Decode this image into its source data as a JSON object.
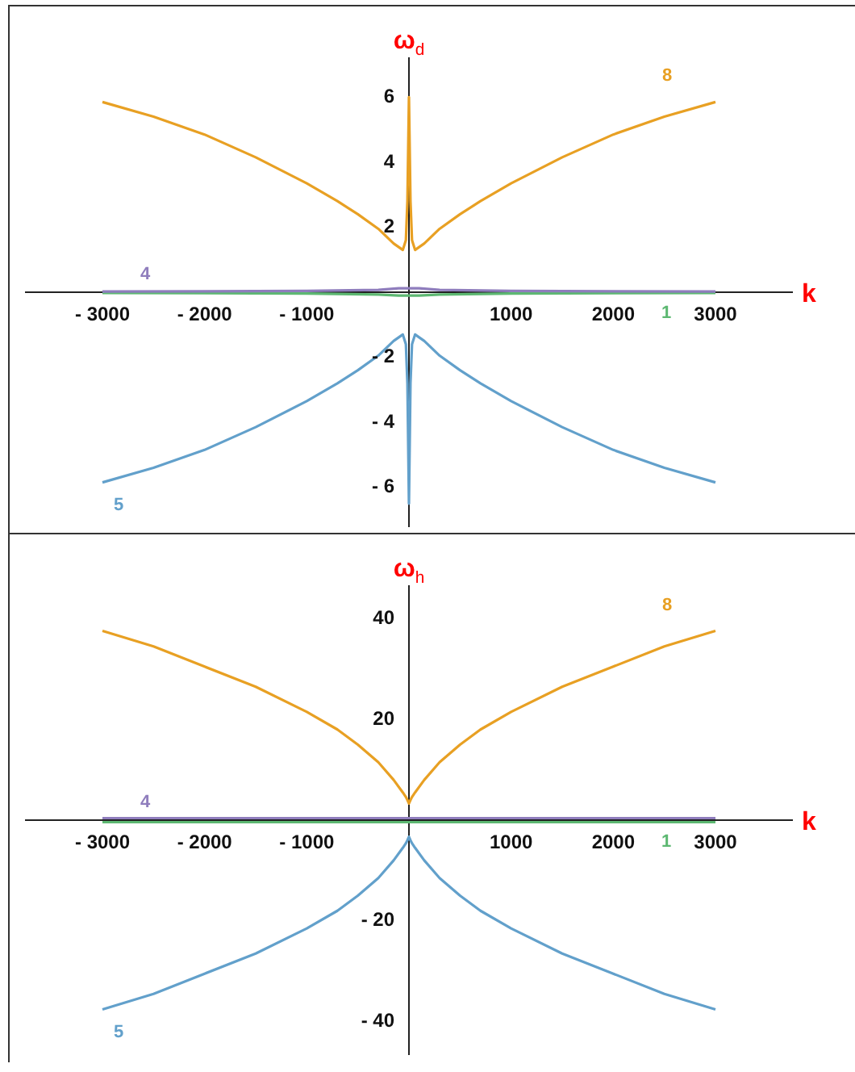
{
  "chart_data": [
    {
      "type": "line",
      "xlabel": "k",
      "ylabel": "ω$_{d}$",
      "xlim": [
        -3750,
        3750
      ],
      "ylim": [
        -7.2,
        7.2
      ],
      "xticks": [
        {
          "value": -3000,
          "label": "- 3000"
        },
        {
          "value": -2000,
          "label": "- 2000"
        },
        {
          "value": -1000,
          "label": "- 1000"
        },
        1000,
        2000,
        3000
      ],
      "yticks": [
        {
          "value": -6,
          "label": "- 6"
        },
        {
          "value": -4,
          "label": "- 4"
        },
        {
          "value": -2,
          "label": "- 2"
        },
        2,
        4,
        6
      ],
      "grid": false,
      "legend": false,
      "marker": "none",
      "line_style": "solid",
      "series": [
        {
          "name": "8",
          "color": "#e8a023",
          "x": [
            -3000,
            -2500,
            -2000,
            -1500,
            -1000,
            -700,
            -500,
            -300,
            -150,
            -60,
            -30,
            -15,
            0,
            15,
            30,
            60,
            150,
            300,
            500,
            700,
            1000,
            1500,
            2000,
            2500,
            3000
          ],
          "values": [
            5.85,
            5.4,
            4.85,
            4.15,
            3.35,
            2.8,
            2.4,
            1.95,
            1.5,
            1.3,
            1.6,
            2.8,
            6,
            2.8,
            1.6,
            1.3,
            1.5,
            1.95,
            2.4,
            2.8,
            3.35,
            4.15,
            4.85,
            5.4,
            5.85
          ]
        },
        {
          "name": "5",
          "color": "#62a0cb",
          "x": [
            -3000,
            -2500,
            -2000,
            -1500,
            -1000,
            -700,
            -500,
            -300,
            -150,
            -60,
            -30,
            -15,
            0,
            15,
            30,
            60,
            150,
            300,
            500,
            700,
            1000,
            1500,
            2000,
            2500,
            3000
          ],
          "values": [
            -5.85,
            -5.4,
            -4.85,
            -4.15,
            -3.35,
            -2.8,
            -2.4,
            -1.95,
            -1.5,
            -1.3,
            -1.6,
            -2.8,
            -6.5,
            -2.8,
            -1.6,
            -1.3,
            -1.5,
            -1.95,
            -2.4,
            -2.8,
            -3.35,
            -4.15,
            -4.85,
            -5.4,
            -5.85
          ]
        },
        {
          "name": "4",
          "color": "#8f7dbd",
          "x": [
            -3000,
            -1000,
            -300,
            -100,
            0,
            100,
            300,
            1000,
            3000
          ],
          "values": [
            0.02,
            0.04,
            0.07,
            0.12,
            0.12,
            0.12,
            0.07,
            0.04,
            0.02
          ]
        },
        {
          "name": "1",
          "color": "#5db872",
          "x": [
            -3000,
            -1000,
            -300,
            -100,
            0,
            100,
            300,
            1000,
            3000
          ],
          "values": [
            -0.02,
            -0.04,
            -0.07,
            -0.1,
            -0.1,
            -0.1,
            -0.07,
            -0.04,
            -0.02
          ]
        }
      ]
    },
    {
      "type": "line",
      "xlabel": "k",
      "ylabel": "ω$_{h}$",
      "xlim": [
        -3750,
        3750
      ],
      "ylim": [
        -46.5,
        46.5
      ],
      "xticks": [
        {
          "value": -3000,
          "label": "- 3000"
        },
        {
          "value": -2000,
          "label": "- 2000"
        },
        {
          "value": -1000,
          "label": "- 1000"
        },
        1000,
        2000,
        3000
      ],
      "yticks": [
        {
          "value": -40,
          "label": "- 40"
        },
        {
          "value": -20,
          "label": "- 20"
        },
        20,
        40
      ],
      "grid": false,
      "legend": false,
      "marker": "none",
      "line_style": "solid",
      "series": [
        {
          "name": "8",
          "color": "#e8a023",
          "x": [
            -3000,
            -2500,
            -2000,
            -1500,
            -1000,
            -700,
            -500,
            -300,
            -150,
            -60,
            -30,
            -15,
            0,
            15,
            30,
            60,
            150,
            300,
            500,
            700,
            1000,
            1500,
            2000,
            2500,
            3000
          ],
          "values": [
            37.6,
            34.5,
            30.5,
            26.5,
            21.5,
            18,
            15,
            11.5,
            8,
            5.5,
            4.6,
            4,
            3.3,
            4,
            4.6,
            5.5,
            8,
            11.5,
            15,
            18,
            21.5,
            26.5,
            30.5,
            34.5,
            37.6
          ]
        },
        {
          "name": "5",
          "color": "#62a0cb",
          "x": [
            -3000,
            -2500,
            -2000,
            -1500,
            -1000,
            -700,
            -500,
            -300,
            -150,
            -60,
            -30,
            -15,
            0,
            15,
            30,
            60,
            150,
            300,
            500,
            700,
            1000,
            1500,
            2000,
            2500,
            3000
          ],
          "values": [
            -37.6,
            -34.5,
            -30.5,
            -26.5,
            -21.5,
            -18,
            -15,
            -11.5,
            -8,
            -5.5,
            -4.6,
            -4,
            -3.3,
            -4,
            -4.6,
            -5.5,
            -8,
            -11.5,
            -15,
            -18,
            -21.5,
            -26.5,
            -30.5,
            -34.5,
            -37.6
          ]
        },
        {
          "name": "4",
          "color": "#8f7dbd",
          "x": [
            -3000,
            3000
          ],
          "values": [
            0.4,
            0.4
          ]
        },
        {
          "name": "1",
          "color": "#5db872",
          "x": [
            -3000,
            3000
          ],
          "values": [
            -0.4,
            -0.4
          ]
        }
      ]
    }
  ]
}
